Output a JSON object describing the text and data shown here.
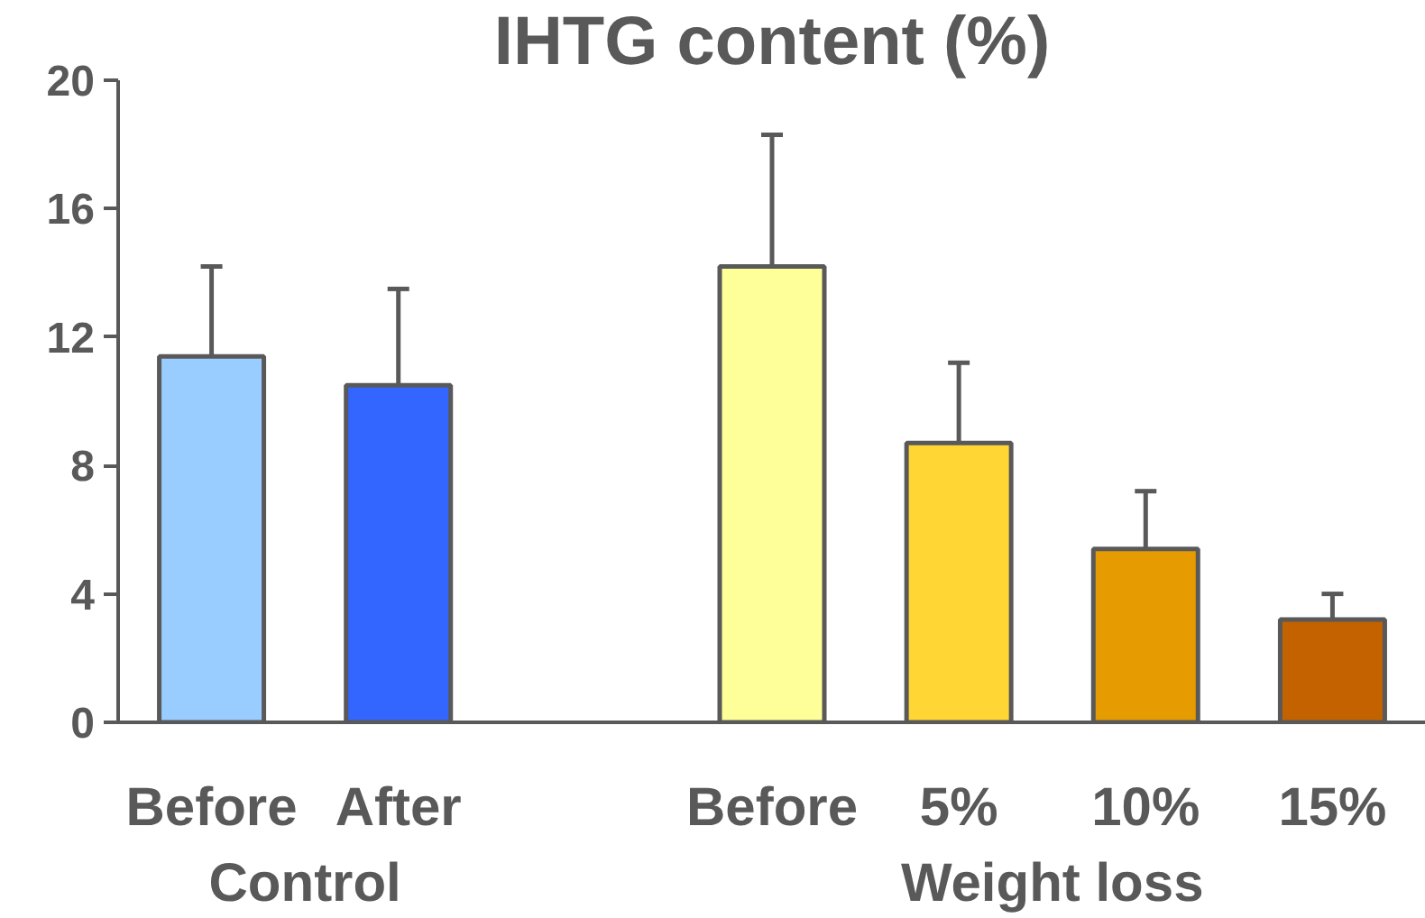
{
  "chart_data": {
    "type": "bar",
    "title": "IHTG content (%)",
    "categories": [
      "Before",
      "After",
      null,
      "Before",
      "5%",
      "10%",
      "15%"
    ],
    "values": [
      11.4,
      10.5,
      null,
      14.2,
      8.7,
      5.4,
      3.2
    ],
    "colors": [
      "#99ccff",
      "#3366ff",
      "#ffffff",
      "#ffff99",
      "#ffd633",
      "#e69c00",
      "#c46200"
    ],
    "errors": [
      [
        11.4,
        14.2
      ],
      [
        10.5,
        13.5
      ],
      null,
      [
        14.2,
        18.3
      ],
      [
        8.7,
        11.2
      ],
      [
        5.4,
        7.2
      ],
      [
        3.2,
        4.0
      ]
    ],
    "annotations": [
      "Control",
      "Weight loss"
    ],
    "ylim": [
      0,
      20
    ],
    "yticks": [
      0,
      4,
      8,
      12,
      16,
      20
    ],
    "grid": false
  }
}
